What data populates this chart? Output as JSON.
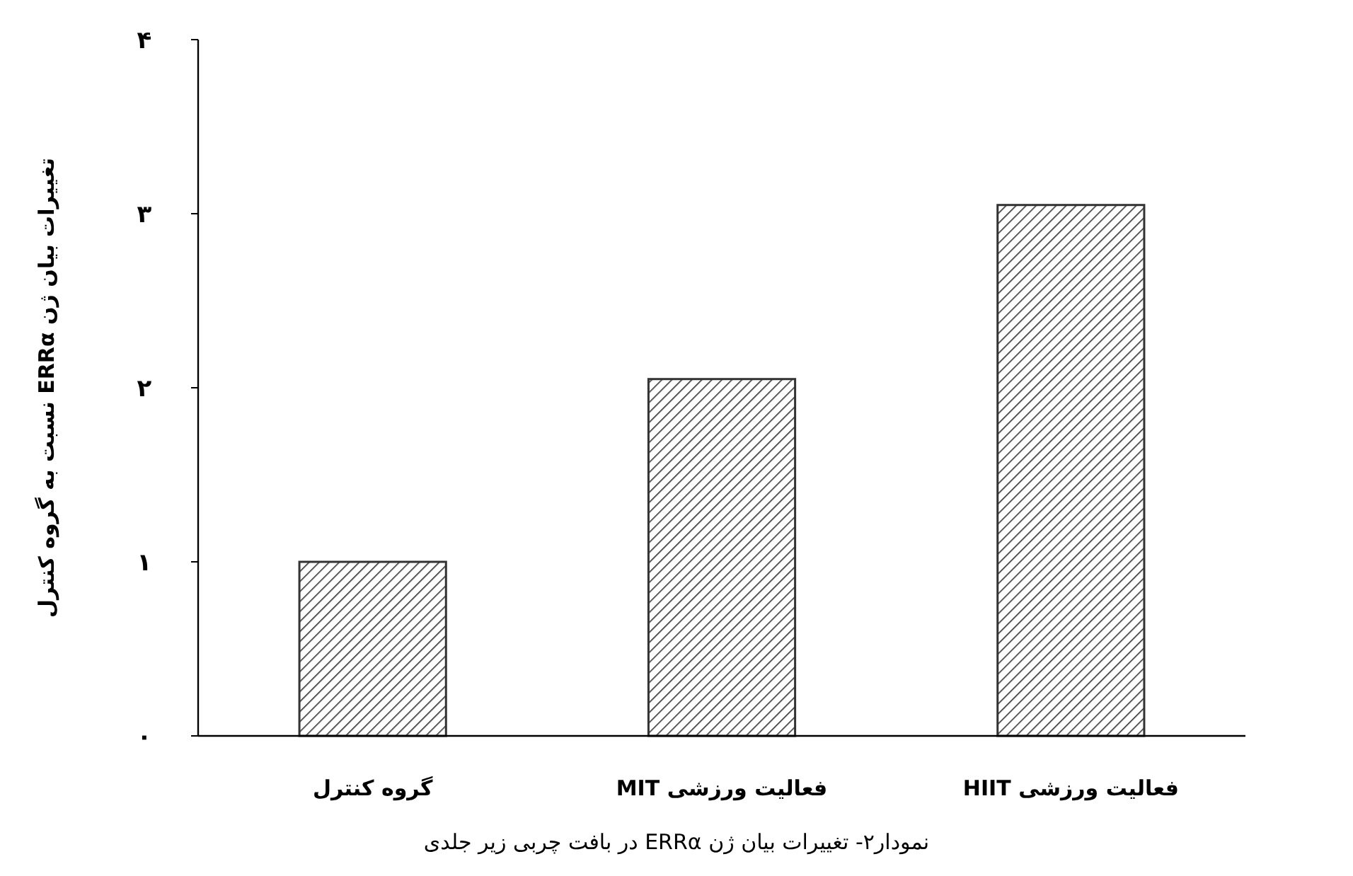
{
  "chart_data": {
    "type": "bar",
    "ylabel": "تغییرات بیان ژن ERRα نسبت به گروه کنترل",
    "categories": [
      "گروه کنترل",
      "فعالیت ورزشی MIT",
      "فعالیت ورزشی HIIT"
    ],
    "values": [
      1,
      2.05,
      3.05
    ],
    "color": "#333333",
    "ylim": [
      0,
      4
    ],
    "yticks": [
      {
        "value": 0,
        "label": "۰"
      },
      {
        "value": 1,
        "label": "۱"
      },
      {
        "value": 2,
        "label": "۲"
      },
      {
        "value": 3,
        "label": "۳"
      },
      {
        "value": 4,
        "label": "۴"
      }
    ],
    "grid": false,
    "annotations": [
      "نمودار۲- تغییرات بیان ژن ERRα در بافت چربی زیر جلدی"
    ]
  }
}
